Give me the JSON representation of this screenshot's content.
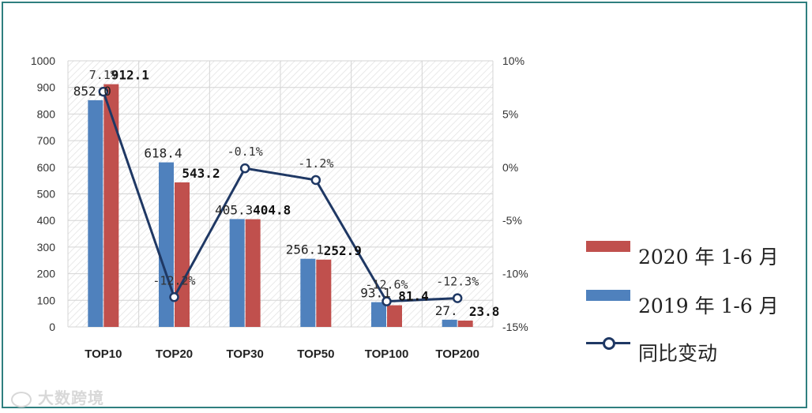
{
  "chart_data": {
    "type": "bar+line",
    "categories": [
      "TOP10",
      "TOP20",
      "TOP30",
      "TOP50",
      "TOP100",
      "TOP200"
    ],
    "series": [
      {
        "name": "2019 年 1-6 月",
        "type": "bar",
        "color": "#4f81bd",
        "values": [
          852.0,
          618.4,
          405.3,
          256.1,
          93.1,
          27.1
        ],
        "labels": [
          "852.0",
          "618.4",
          "405.3",
          "256.1",
          "93.1",
          "27."
        ]
      },
      {
        "name": "2020 年 1-6 月",
        "type": "bar",
        "color": "#c0504d",
        "values": [
          912.1,
          543.2,
          404.8,
          252.9,
          81.4,
          23.8
        ],
        "labels": [
          "912.1",
          "543.2",
          "404.8",
          "252.9",
          "81.4",
          "23.8"
        ]
      },
      {
        "name": "同比变动",
        "type": "line",
        "axis": "right",
        "color": "#1f3864",
        "values": [
          7.1,
          -12.2,
          -0.1,
          -1.2,
          -12.6,
          -12.3
        ],
        "labels": [
          "7.1%",
          "-12.2%",
          "-0.1%",
          "-1.2%",
          "-12.6%",
          "-12.3%"
        ]
      }
    ],
    "y_left": {
      "range": [
        0,
        1000
      ],
      "ticks": [
        "0",
        "100",
        "200",
        "300",
        "400",
        "500",
        "600",
        "700",
        "800",
        "900",
        "1000"
      ]
    },
    "y_right": {
      "range": [
        -15,
        10
      ],
      "ticks": [
        "-15%",
        "-10%",
        "-5%",
        "0%",
        "5%",
        "10%"
      ]
    },
    "grid": true,
    "legend_position": "right"
  },
  "watermark": "大数跨境"
}
